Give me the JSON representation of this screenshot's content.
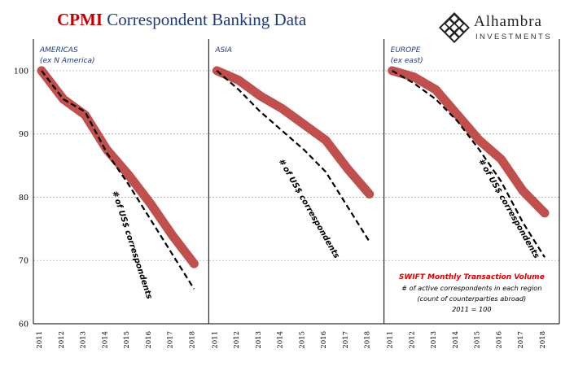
{
  "header": {
    "title_prefix": "CPMI",
    "title_rest": "Correspondent Banking Data"
  },
  "logo": {
    "name": "Alhambra",
    "sub": "INVESTMENTS",
    "icon": "diamond-lattice-icon"
  },
  "colors": {
    "swift_line": "#c0504d",
    "correspondents_line": "#000000",
    "title_red": "#c00000",
    "title_blue": "#1f3a7a",
    "grid": "#b0b0b0"
  },
  "chart_data": {
    "type": "line",
    "layout": "three-panels",
    "ylim": [
      60,
      105
    ],
    "yticks": [
      60,
      70,
      80,
      90,
      100
    ],
    "grid": "horizontal-dotted",
    "x": [
      "2011",
      "2012",
      "2013",
      "2014",
      "2015",
      "2016",
      "2017",
      "2018"
    ],
    "series_styles": [
      {
        "key": "swift",
        "style": "thick-solid",
        "color": "#c0504d"
      },
      {
        "key": "correspondents",
        "style": "dashed",
        "color": "#000000"
      }
    ],
    "panels": [
      {
        "title": "AMERICAS",
        "subtitle": "(ex N America)",
        "swift": [
          100,
          95.5,
          93,
          87.5,
          83.5,
          79,
          74,
          69.5
        ],
        "correspondents": [
          100,
          95.5,
          93.5,
          87,
          82,
          76.5,
          71,
          65.5
        ],
        "line_label": "# of US$ correspondents"
      },
      {
        "title": "ASIA",
        "subtitle": "",
        "swift": [
          100,
          98.5,
          96,
          94,
          91.5,
          89,
          84.5,
          80.5
        ],
        "correspondents": [
          100,
          97,
          93.5,
          90.5,
          87.5,
          84,
          78.5,
          73
        ],
        "line_label": "# of US$ correspondents"
      },
      {
        "title": "EUROPE",
        "subtitle": "(ex east)",
        "swift": [
          100,
          99,
          97,
          93,
          89,
          86,
          81,
          77.5
        ],
        "correspondents": [
          100,
          98,
          95.5,
          92,
          87.5,
          82.5,
          76,
          70.5
        ],
        "line_label": "# of US$ correspondents"
      }
    ],
    "annotation": {
      "title": "SWIFT Monthly Transaction Volume",
      "line1": "# of active correspondents in each region",
      "line2": "(count of counterparties abroad)",
      "line3": "2011 = 100"
    }
  }
}
